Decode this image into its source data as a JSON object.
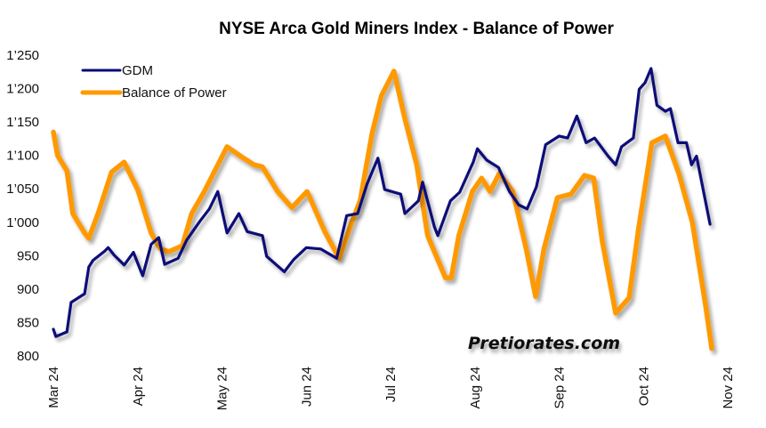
{
  "chart_data": {
    "type": "line",
    "title": "NYSE  Arca Gold Miners Index - Balance of Power",
    "xlabel": "",
    "ylabel": "",
    "ylim": [
      800,
      1250
    ],
    "yticks": [
      800,
      850,
      900,
      950,
      1000,
      1050,
      1100,
      1150,
      1200,
      1250
    ],
    "ytick_labels": [
      "800",
      "850",
      "900",
      "950",
      "1’000",
      "1’050",
      "1’100",
      "1’150",
      "1’200",
      "1’250"
    ],
    "xlim": [
      0,
      8
    ],
    "xtick_labels": [
      "Mar 24",
      "Apr 24",
      "May 24",
      "Jun 24",
      "Jul 24",
      "Aug 24",
      "Sep 24",
      "Oct 24",
      "Nov 24"
    ],
    "xtick_values": [
      0,
      1,
      2,
      3,
      4,
      5,
      6,
      7,
      8
    ],
    "x_unit": "months since Mar 24",
    "grid": false,
    "legend_position": "top-left",
    "watermark": "Pretiorates.com",
    "colors": {
      "GDM": "#0a0a78",
      "Balance of Power": "#ff9900"
    },
    "series": [
      {
        "name": "GDM",
        "x": [
          0.0,
          0.03,
          0.16,
          0.21,
          0.37,
          0.42,
          0.47,
          0.61,
          0.65,
          0.72,
          0.84,
          0.95,
          1.06,
          1.16,
          1.25,
          1.32,
          1.48,
          1.58,
          1.74,
          1.85,
          1.95,
          2.06,
          2.2,
          2.3,
          2.48,
          2.53,
          2.74,
          2.85,
          3.0,
          3.17,
          3.36,
          3.48,
          3.61,
          3.72,
          3.85,
          3.93,
          4.12,
          4.17,
          4.33,
          4.38,
          4.52,
          4.56,
          4.71,
          4.82,
          4.98,
          5.03,
          5.14,
          5.28,
          5.41,
          5.52,
          5.62,
          5.73,
          5.84,
          6.0,
          6.1,
          6.21,
          6.32,
          6.42,
          6.58,
          6.67,
          6.74,
          6.88,
          6.95,
          7.02,
          7.09,
          7.16,
          7.26,
          7.32,
          7.41,
          7.51,
          7.57,
          7.63,
          7.79
        ],
        "values": [
          840,
          829,
          836,
          880,
          893,
          933,
          943,
          957,
          962,
          951,
          936,
          955,
          920,
          967,
          977,
          937,
          946,
          973,
          1002,
          1020,
          1046,
          984,
          1013,
          986,
          980,
          949,
          926,
          944,
          962,
          960,
          946,
          1010,
          1013,
          1057,
          1096,
          1049,
          1042,
          1013,
          1032,
          1060,
          993,
          980,
          1032,
          1045,
          1090,
          1110,
          1093,
          1082,
          1046,
          1026,
          1020,
          1053,
          1116,
          1129,
          1126,
          1159,
          1119,
          1126,
          1099,
          1086,
          1113,
          1126,
          1199,
          1209,
          1230,
          1175,
          1166,
          1170,
          1119,
          1119,
          1086,
          1099,
          997
        ]
      },
      {
        "name": "Balance of Power",
        "x": [
          0.0,
          0.05,
          0.16,
          0.23,
          0.37,
          0.42,
          0.53,
          0.69,
          0.84,
          1.0,
          1.16,
          1.27,
          1.37,
          1.53,
          1.64,
          1.79,
          2.06,
          2.22,
          2.38,
          2.48,
          2.66,
          2.83,
          3.01,
          3.22,
          3.39,
          3.54,
          3.64,
          3.78,
          3.89,
          4.04,
          4.17,
          4.31,
          4.44,
          4.65,
          4.72,
          4.81,
          4.97,
          5.08,
          5.18,
          5.29,
          5.45,
          5.61,
          5.72,
          5.82,
          5.98,
          6.14,
          6.3,
          6.41,
          6.51,
          6.67,
          6.83,
          6.94,
          7.1,
          7.26,
          7.42,
          7.58,
          7.74,
          7.81
        ],
        "values": [
          1135,
          1100,
          1077,
          1013,
          984,
          976,
          1013,
          1075,
          1090,
          1049,
          984,
          960,
          956,
          965,
          1013,
          1046,
          1113,
          1099,
          1086,
          1083,
          1046,
          1022,
          1046,
          986,
          946,
          1000,
          1033,
          1133,
          1189,
          1226,
          1155,
          1086,
          980,
          917,
          917,
          980,
          1046,
          1066,
          1046,
          1073,
          1046,
          960,
          889,
          960,
          1037,
          1042,
          1070,
          1066,
          973,
          864,
          887,
          989,
          1119,
          1129,
          1073,
          1000,
          873,
          811
        ]
      }
    ]
  }
}
